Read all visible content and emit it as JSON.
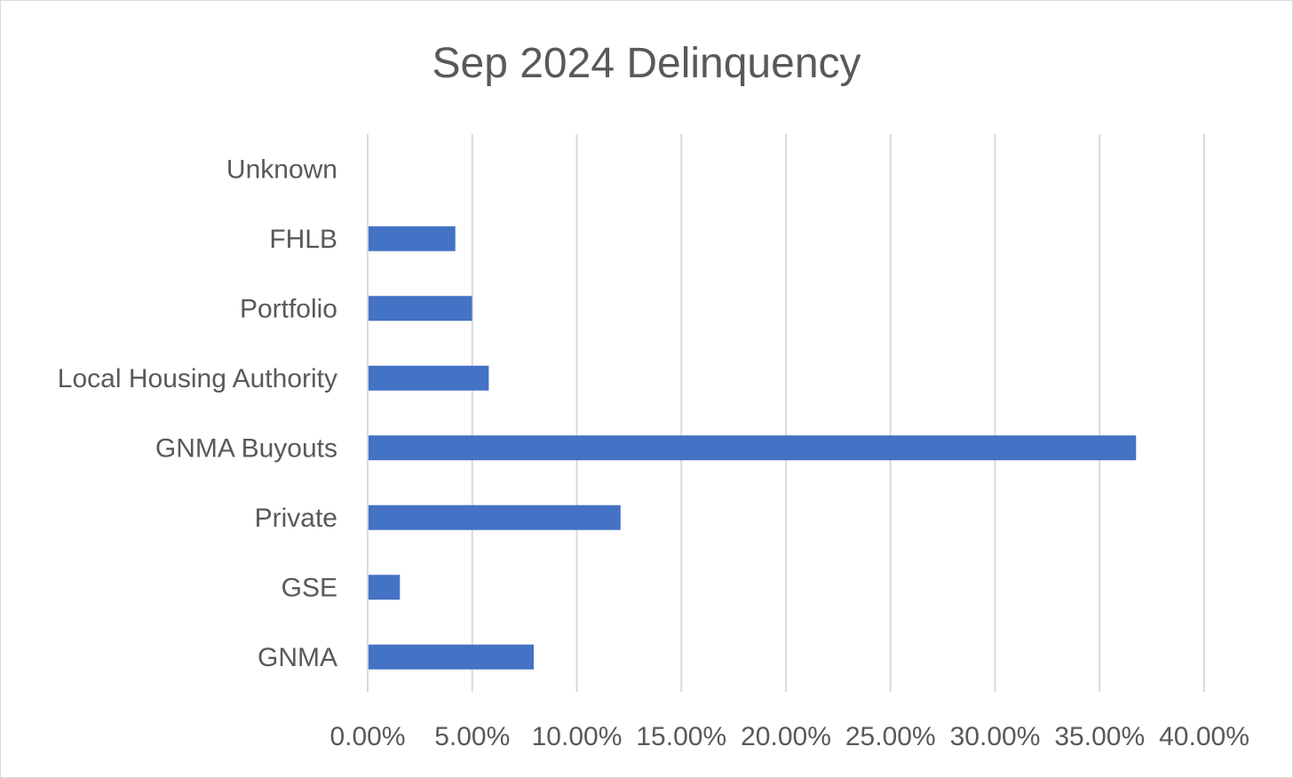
{
  "chart_data": {
    "type": "bar",
    "orientation": "horizontal",
    "title": "Sep 2024 Delinquency",
    "xlabel": "",
    "ylabel": "",
    "categories": [
      "Unknown",
      "FHLB",
      "Portfolio",
      "Local Housing Authority",
      "GNMA Buyouts",
      "Private",
      "GSE",
      "GNMA"
    ],
    "values": [
      0.0,
      4.15,
      4.95,
      5.75,
      36.7,
      12.05,
      1.5,
      7.9
    ],
    "x_ticks": [
      "0.00%",
      "5.00%",
      "10.00%",
      "15.00%",
      "20.00%",
      "25.00%",
      "30.00%",
      "35.00%",
      "40.00%"
    ],
    "xlim": [
      0,
      40
    ],
    "grid": "vertical",
    "legend": "none",
    "colors": {
      "bar": "#4472c4",
      "grid": "#d9d9d9",
      "text": "#595959"
    }
  }
}
